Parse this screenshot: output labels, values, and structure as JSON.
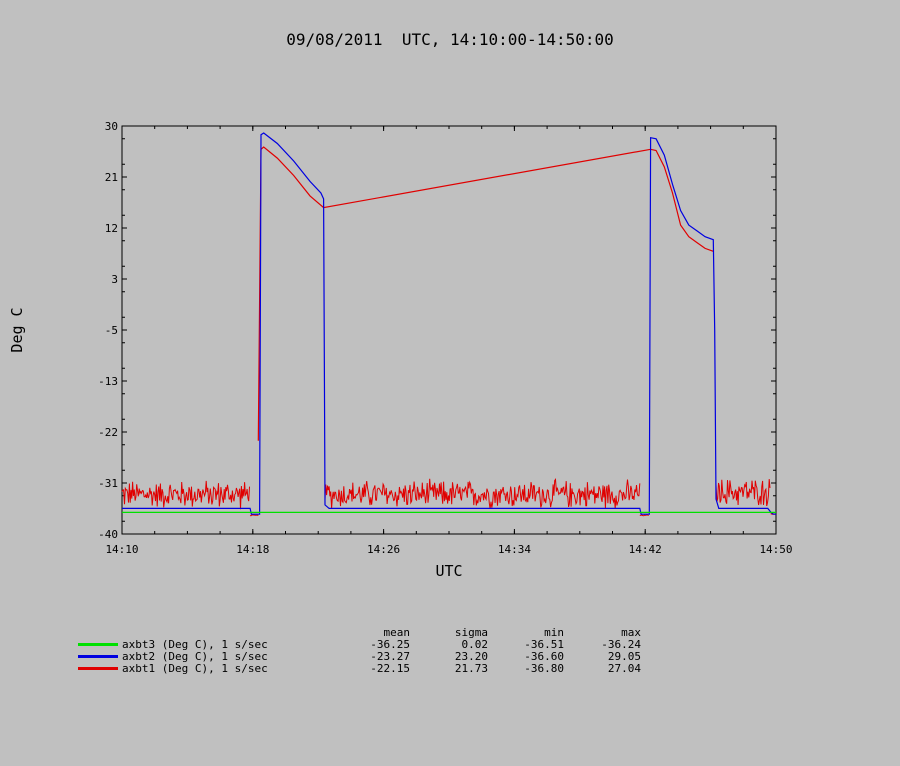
{
  "header": {
    "title": "09/08/2011  UTC, 14:10:00-14:50:00"
  },
  "chart_data": {
    "type": "line",
    "title": "09/08/2011  UTC, 14:10:00-14:50:00",
    "xlabel": "UTC",
    "ylabel": "Deg C",
    "xlim": [
      "14:10",
      "14:50"
    ],
    "ylim": [
      -40,
      30
    ],
    "x_ticks": [
      "14:10",
      "14:18",
      "14:26",
      "14:34",
      "14:42",
      "14:50"
    ],
    "y_ticks": [
      "30",
      "21",
      "12",
      "3",
      "-5",
      "-13",
      "-22",
      "-31",
      "-40"
    ],
    "grid": false,
    "series": [
      {
        "name": "axbt3 (Deg C), 1 s/sec",
        "color": "#00e000",
        "x": [
          "14:10",
          "14:50"
        ],
        "y": [
          -36.3,
          -36.3
        ]
      },
      {
        "name": "axbt2 (Deg C), 1 s/sec",
        "color": "#0000e0",
        "x": [
          "14:10",
          "14:17:50",
          "14:17:55",
          "14:18:25",
          "14:18:30",
          "14:18:40",
          "14:19:30",
          "14:20:30",
          "14:21:30",
          "14:22:10",
          "14:22:20",
          "14:22:25",
          "14:22:40",
          "14:41:40",
          "14:41:45",
          "14:42:15",
          "14:42:20",
          "14:42:40",
          "14:43:10",
          "14:43:40",
          "14:44:10",
          "14:44:40",
          "14:45:10",
          "14:45:40",
          "14:46:10",
          "14:46:15",
          "14:46:20",
          "14:46:30",
          "14:49:30",
          "14:49:40",
          "14:49:50",
          "14:50"
        ],
        "y": [
          -35.6,
          -35.6,
          -36.6,
          -36.6,
          28.5,
          28.8,
          27.0,
          24.0,
          20.5,
          18.5,
          17.5,
          -35.0,
          -35.6,
          -35.6,
          -36.6,
          -36.6,
          28.0,
          27.8,
          25.0,
          20.0,
          15.5,
          13.0,
          12.0,
          11.0,
          10.5,
          -5.0,
          -34.0,
          -35.6,
          -35.6,
          -36.2,
          -36.6,
          -36.6
        ]
      },
      {
        "name": "axbt1 (Deg C), 1 s/sec",
        "color": "#e00000",
        "x": [
          "14:18:20",
          "14:18:30",
          "14:18:40",
          "14:19:30",
          "14:20:30",
          "14:21:30",
          "14:22:20",
          "14:42:20",
          "14:42:40",
          "14:43:10",
          "14:43:40",
          "14:44:10",
          "14:44:40",
          "14:45:10",
          "14:45:40",
          "14:46:10"
        ],
        "y": [
          -24.0,
          26.0,
          26.4,
          24.5,
          21.5,
          18.0,
          16.0,
          26.0,
          25.8,
          23.0,
          18.5,
          13.0,
          11.0,
          10.0,
          9.0,
          8.5
        ],
        "noise_segments": [
          {
            "from": "14:10",
            "to": "14:17:50",
            "center": -33.2,
            "amplitude": 2.8
          },
          {
            "from": "14:17:50",
            "to": "14:18:20",
            "center": -36.8,
            "amplitude": 0.1
          },
          {
            "from": "14:22:25",
            "to": "14:41:40",
            "center": -33.2,
            "amplitude": 2.8
          },
          {
            "from": "14:41:40",
            "to": "14:42:15",
            "center": -36.8,
            "amplitude": 0.1
          },
          {
            "from": "14:46:20",
            "to": "14:49:40",
            "center": -32.8,
            "amplitude": 2.8
          },
          {
            "from": "14:49:40",
            "to": "14:50",
            "center": -36.5,
            "amplitude": 0.3
          }
        ]
      }
    ]
  },
  "legend": {
    "headers": {
      "mean": "mean",
      "sigma": "sigma",
      "min": "min",
      "max": "max"
    },
    "rows": [
      {
        "name": "axbt3 (Deg C), 1 s/sec",
        "color": "#00e000",
        "mean": "-36.25",
        "sigma": "0.02",
        "min": "-36.51",
        "max": "-36.24"
      },
      {
        "name": "axbt2 (Deg C), 1 s/sec",
        "color": "#0000e0",
        "mean": "-23.27",
        "sigma": "23.20",
        "min": "-36.60",
        "max": "29.05"
      },
      {
        "name": "axbt1 (Deg C), 1 s/sec",
        "color": "#e00000",
        "mean": "-22.15",
        "sigma": "21.73",
        "min": "-36.80",
        "max": "27.04"
      }
    ]
  }
}
